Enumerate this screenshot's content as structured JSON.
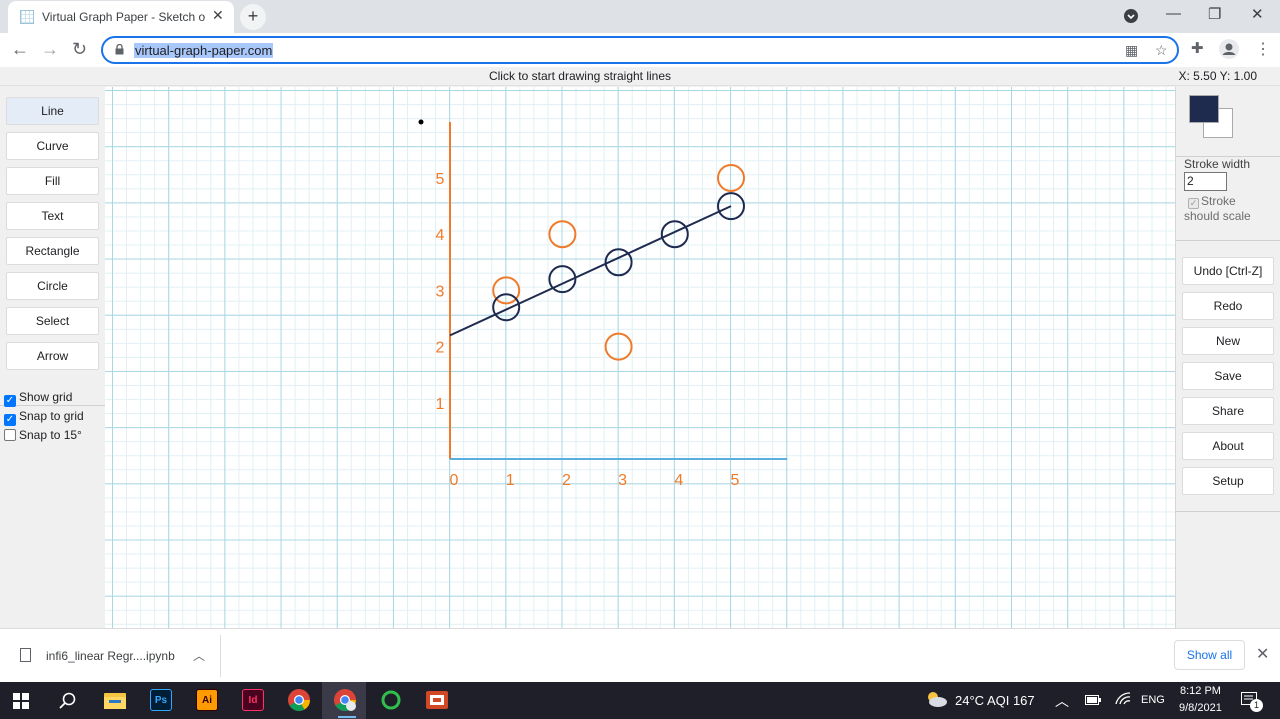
{
  "browser": {
    "tab_title": "Virtual Graph Paper - Sketch on a",
    "tab_close": "✕",
    "new_tab": "+",
    "url": "virtual-graph-paper.com",
    "minimize": "—",
    "maximize": "❐",
    "close": "✕"
  },
  "status": {
    "message": "Click to start drawing straight lines",
    "coords": "X: 5.50 Y: 1.00"
  },
  "tools": [
    {
      "label": "Line",
      "active": true
    },
    {
      "label": "Curve"
    },
    {
      "label": "Fill"
    },
    {
      "label": "Text"
    },
    {
      "label": "Rectangle"
    },
    {
      "label": "Circle"
    },
    {
      "label": "Select"
    },
    {
      "label": "Arrow"
    }
  ],
  "options": {
    "show_grid": "Show grid",
    "snap_to_grid": "Snap to grid",
    "snap_15": "Snap to 15°"
  },
  "right_panel": {
    "fg_color": "#1f2a4f",
    "bg_color": "#ffffff",
    "stroke_width_label": "Stroke width",
    "stroke_width_value": "2",
    "stroke_scale_label": "Stroke should scale",
    "actions": [
      "Undo [Ctrl-Z]",
      "Redo",
      "New",
      "Save",
      "Share",
      "About",
      "Setup"
    ]
  },
  "drawing": {
    "x_ticks": [
      "0",
      "1",
      "2",
      "3",
      "4",
      "5"
    ],
    "y_ticks": [
      "1",
      "2",
      "3",
      "4",
      "5"
    ],
    "orange_points": [
      [
        1,
        3
      ],
      [
        2,
        4
      ],
      [
        3,
        2
      ],
      [
        5,
        5
      ]
    ],
    "navy_points": [
      [
        1,
        2.7
      ],
      [
        2,
        3.2
      ],
      [
        3,
        3.5
      ],
      [
        4,
        4
      ],
      [
        5,
        4.5
      ]
    ],
    "line": {
      "from": [
        0,
        2.2
      ],
      "to": [
        5,
        4.5
      ]
    },
    "axis_color": "#ef7b2a",
    "x_axis_color": "#5aaee0",
    "navy_color": "#1f2a4f"
  },
  "downloads": {
    "file_name": "infi6_linear Regr....ipynb",
    "show_all": "Show all"
  },
  "taskbar": {
    "weather": "24°C  AQI 167",
    "lang": "ENG",
    "time": "8:12 PM",
    "date": "9/8/2021",
    "notif_count": "1",
    "apps": [
      {
        "name": "ps",
        "label": "Ps",
        "bg": "#001e36",
        "fg": "#31a8ff"
      },
      {
        "name": "ai",
        "label": "Ai",
        "bg": "#ff9a00",
        "fg": "#330000"
      },
      {
        "name": "id",
        "label": "Id",
        "bg": "#49021f",
        "fg": "#ff3366"
      }
    ]
  }
}
